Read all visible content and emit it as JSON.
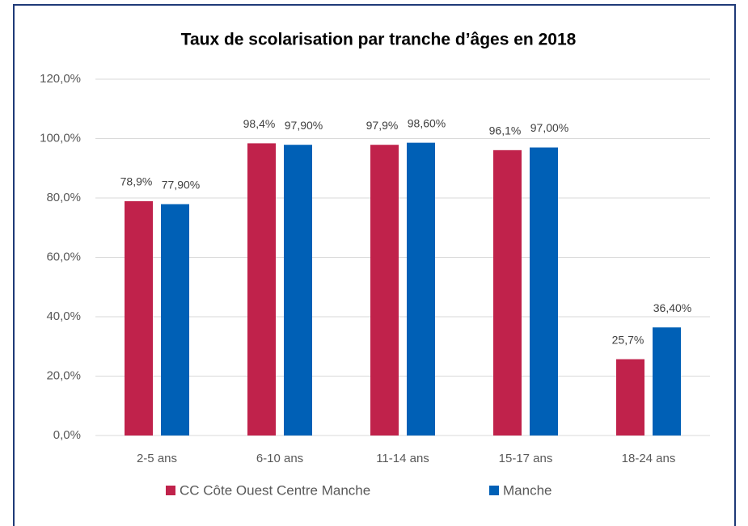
{
  "chart_data": {
    "type": "bar",
    "title": "Taux de scolarisation par tranche d’âges en 2018",
    "categories": [
      "2-5 ans",
      "6-10 ans",
      "11-14 ans",
      "15-17 ans",
      "18-24 ans"
    ],
    "series": [
      {
        "name": "CC Côte Ouest Centre Manche",
        "color": "#c0224b",
        "values": [
          78.9,
          98.4,
          97.9,
          96.1,
          25.7
        ],
        "value_labels": [
          "78,9%",
          "98,4%",
          "97,9%",
          "96,1%",
          "25,7%"
        ]
      },
      {
        "name": "Manche",
        "color": "#0060b6",
        "values": [
          77.9,
          97.9,
          98.6,
          97.0,
          36.4
        ],
        "value_labels": [
          "77,90%",
          "97,90%",
          "98,60%",
          "97,00%",
          "36,40%"
        ]
      }
    ],
    "ylim": [
      0,
      120
    ],
    "yticks": [
      {
        "value": 0,
        "label": "0,0%"
      },
      {
        "value": 20,
        "label": "20,0%"
      },
      {
        "value": 40,
        "label": "40,0%"
      },
      {
        "value": 60,
        "label": "60,0%"
      },
      {
        "value": 80,
        "label": "80,0%"
      },
      {
        "value": 100,
        "label": "100,0%"
      },
      {
        "value": 120,
        "label": "120,0%"
      }
    ],
    "grid": true,
    "legend": "bottom"
  }
}
